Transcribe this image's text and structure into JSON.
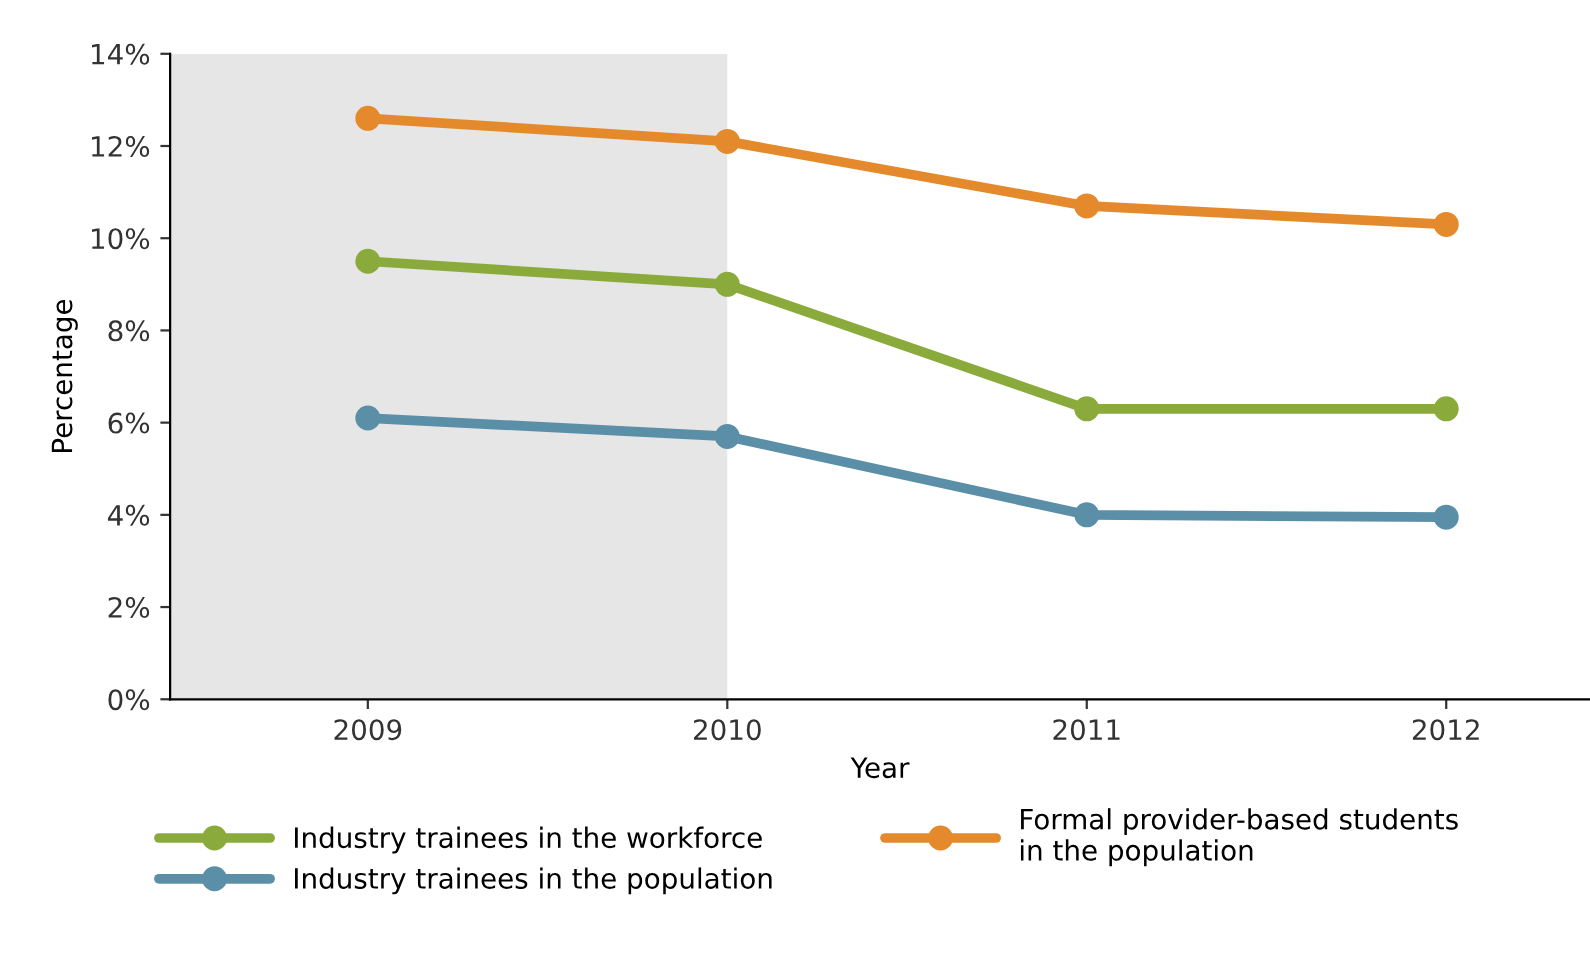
{
  "chart_data": {
    "type": "line",
    "xlabel": "Year",
    "ylabel": "Percentage",
    "x": [
      2009,
      2010,
      2011,
      2012
    ],
    "xlim": [
      2008.45,
      2012.4
    ],
    "xticks": [
      2009,
      2010,
      2011,
      2012
    ],
    "ylim": [
      0,
      14
    ],
    "yticks": [
      {
        "value": 0,
        "label": "0%"
      },
      {
        "value": 2,
        "label": "2%"
      },
      {
        "value": 4,
        "label": "4%"
      },
      {
        "value": 6,
        "label": "6%"
      },
      {
        "value": 8,
        "label": "8%"
      },
      {
        "value": 10,
        "label": "10%"
      },
      {
        "value": 12,
        "label": "12%"
      },
      {
        "value": 14,
        "label": "14%"
      }
    ],
    "series": [
      {
        "name": "Industry trainees in the workforce",
        "color": "#8aab3c",
        "values": [
          9.5,
          9.0,
          6.3,
          6.3
        ]
      },
      {
        "name": "Formal provider-based students\nin the population",
        "color": "#e58a2c",
        "values": [
          12.6,
          12.1,
          10.7,
          10.3
        ]
      },
      {
        "name": "Industry trainees in the population",
        "color": "#5b8fa8",
        "values": [
          6.1,
          5.7,
          4.0,
          3.95
        ]
      }
    ],
    "bands": [
      {
        "axis": "x",
        "from": 2008.45,
        "to": 2010,
        "color": "#e6e6e6"
      }
    ],
    "marker": "circle",
    "line_style": "solid",
    "grid": false,
    "legend": "bottom"
  }
}
